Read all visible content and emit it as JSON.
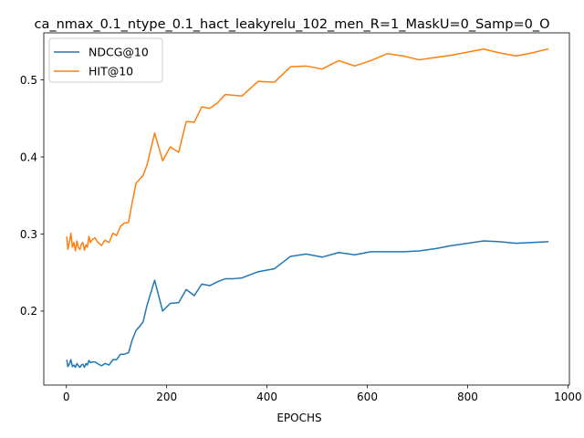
{
  "chart_data": {
    "type": "line",
    "title": "ca_nmax_0.1_ntype_0.1_hact_leakyrelu_102_men_R=1_MaskU=0_Samp=0_O",
    "xlabel": "EPOCHS",
    "ylabel": "",
    "xlim": [
      -45,
      1003
    ],
    "ylim": [
      0.104,
      0.561
    ],
    "xticks": [
      0,
      200,
      400,
      600,
      800,
      1000
    ],
    "yticks": [
      0.2,
      0.3,
      0.4,
      0.5
    ],
    "xtick_labels": [
      "0",
      "200",
      "400",
      "600",
      "800",
      "1000"
    ],
    "ytick_labels": [
      "0.2",
      "0.3",
      "0.4",
      "0.5"
    ],
    "grid": false,
    "legend_position": "top-left",
    "series": [
      {
        "name": "NDCG@10",
        "color": "#1f77b4",
        "x": [
          1,
          3,
          6,
          9,
          12,
          15,
          18,
          21,
          24,
          27,
          30,
          33,
          36,
          39,
          42,
          45,
          48,
          52,
          57,
          62,
          70,
          77,
          85,
          93,
          100,
          108,
          115,
          124,
          131,
          139,
          146,
          153,
          161,
          176,
          192,
          207,
          224,
          239,
          255,
          270,
          286,
          301,
          317,
          333,
          350,
          382,
          415,
          447,
          478,
          510,
          543,
          575,
          607,
          640,
          672,
          703,
          736,
          768,
          800,
          832,
          864,
          897,
          928,
          960
        ],
        "y": [
          0.136,
          0.128,
          0.131,
          0.137,
          0.128,
          0.13,
          0.127,
          0.132,
          0.129,
          0.127,
          0.13,
          0.131,
          0.127,
          0.132,
          0.13,
          0.136,
          0.133,
          0.134,
          0.134,
          0.132,
          0.129,
          0.132,
          0.13,
          0.137,
          0.137,
          0.144,
          0.144,
          0.146,
          0.162,
          0.175,
          0.18,
          0.186,
          0.208,
          0.24,
          0.2,
          0.21,
          0.211,
          0.228,
          0.22,
          0.235,
          0.233,
          0.238,
          0.242,
          0.242,
          0.243,
          0.251,
          0.255,
          0.271,
          0.274,
          0.27,
          0.276,
          0.273,
          0.277,
          0.277,
          0.277,
          0.278,
          0.281,
          0.285,
          0.288,
          0.291,
          0.29,
          0.288,
          0.289,
          0.29
        ]
      },
      {
        "name": "HIT@10",
        "color": "#ff7f0e",
        "x": [
          1,
          3,
          6,
          9,
          12,
          15,
          18,
          21,
          24,
          27,
          30,
          33,
          36,
          39,
          42,
          45,
          48,
          52,
          57,
          62,
          70,
          77,
          85,
          93,
          100,
          108,
          115,
          124,
          131,
          139,
          146,
          153,
          161,
          176,
          192,
          207,
          224,
          239,
          255,
          270,
          286,
          301,
          317,
          333,
          350,
          382,
          415,
          447,
          478,
          510,
          543,
          575,
          607,
          640,
          672,
          703,
          736,
          768,
          800,
          832,
          864,
          897,
          928,
          960
        ],
        "y": [
          0.296,
          0.28,
          0.289,
          0.301,
          0.283,
          0.289,
          0.278,
          0.291,
          0.282,
          0.28,
          0.287,
          0.289,
          0.279,
          0.286,
          0.283,
          0.297,
          0.289,
          0.293,
          0.295,
          0.29,
          0.285,
          0.292,
          0.289,
          0.301,
          0.298,
          0.31,
          0.314,
          0.315,
          0.34,
          0.366,
          0.371,
          0.376,
          0.39,
          0.431,
          0.395,
          0.413,
          0.406,
          0.446,
          0.445,
          0.465,
          0.463,
          0.47,
          0.481,
          0.48,
          0.479,
          0.498,
          0.497,
          0.517,
          0.518,
          0.514,
          0.525,
          0.518,
          0.525,
          0.534,
          0.531,
          0.526,
          0.529,
          0.532,
          0.536,
          0.54,
          0.535,
          0.531,
          0.535,
          0.54
        ]
      }
    ]
  }
}
